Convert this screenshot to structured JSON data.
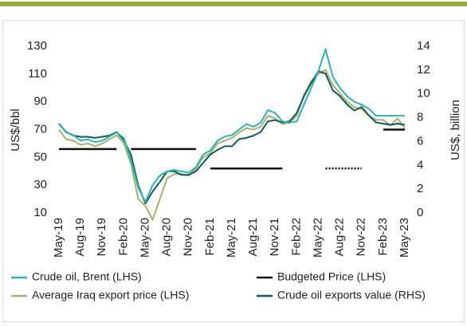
{
  "chart_data": {
    "type": "line",
    "categories": [
      "May-19",
      null,
      null,
      "Aug-19",
      null,
      null,
      "Nov-19",
      null,
      null,
      "Feb-20",
      null,
      null,
      "May-20",
      null,
      null,
      "Aug-20",
      null,
      null,
      "Nov-20",
      null,
      null,
      "Feb-21",
      null,
      null,
      "May-21",
      null,
      null,
      "Aug-21",
      null,
      null,
      "Nov-21",
      null,
      null,
      "Feb-22",
      null,
      null,
      "May-22",
      null,
      null,
      "Aug-22",
      null,
      null,
      "Nov-22",
      null,
      null,
      "Feb-23",
      null,
      null,
      "May-23"
    ],
    "ylabel": "US$/bbl",
    "y2label": "US$, billion",
    "ylim": [
      10,
      130
    ],
    "yticks": [
      10,
      30,
      50,
      70,
      90,
      110,
      130
    ],
    "y2lim": [
      0,
      14
    ],
    "y2ticks": [
      0,
      2,
      4,
      6,
      8,
      10,
      12,
      14
    ],
    "series": [
      {
        "name": "Crude oil, Brent (LHS)",
        "color": "#2bb5b2",
        "values": [
          74,
          68,
          66,
          62,
          63,
          61,
          62,
          65,
          68,
          64,
          48,
          28,
          18,
          30,
          37,
          40,
          41,
          40,
          39,
          43,
          52,
          55,
          62,
          65,
          66,
          70,
          74,
          72,
          75,
          84,
          82,
          76,
          75,
          76,
          88,
          100,
          112,
          128,
          108,
          100,
          94,
          90,
          88,
          85,
          80,
          80,
          80,
          80,
          80
        ]
      },
      {
        "name": "Budgeted Price (LHS)",
        "color": "#111111",
        "values": [
          56,
          56,
          56,
          56,
          56,
          56,
          56,
          56,
          56,
          null,
          56,
          56,
          56,
          56,
          56,
          56,
          56,
          56,
          56,
          56,
          null,
          42,
          42,
          42,
          42,
          42,
          42,
          42,
          42,
          42,
          42,
          42,
          null,
          null,
          null,
          null,
          null,
          42,
          42,
          42,
          42,
          42,
          42,
          null,
          null,
          70,
          70,
          70,
          70
        ],
        "piece_styles": [
          "solid",
          "solid",
          "solid",
          "dotted",
          "solid"
        ]
      },
      {
        "name": "Average Iraq export price (LHS)",
        "color": "#a8b26a",
        "values": [
          70,
          63,
          62,
          59,
          60,
          58,
          60,
          63,
          66,
          60,
          45,
          20,
          15,
          5,
          20,
          35,
          38,
          38,
          37,
          42,
          50,
          53,
          60,
          62,
          64,
          68,
          71,
          70,
          72,
          80,
          78,
          74,
          75,
          80,
          95,
          105,
          110,
          113,
          102,
          96,
          90,
          86,
          85,
          80,
          77,
          77,
          73,
          78,
          71
        ]
      },
      {
        "name": "Crude oil exports value (RHS)",
        "color": "#0e5c5c",
        "axis": "y2",
        "values": [
          7.5,
          6.8,
          6.5,
          6.4,
          6.4,
          6.3,
          6.4,
          6.5,
          6.8,
          6.1,
          4.9,
          2.3,
          0.8,
          1.8,
          2.6,
          3.5,
          3.5,
          3.2,
          3.2,
          3.5,
          4.2,
          4.9,
          5.3,
          5.6,
          5.6,
          6.2,
          6.3,
          6.5,
          6.8,
          7.7,
          7.8,
          7.6,
          7.7,
          8.4,
          9.8,
          10.9,
          11.9,
          11.7,
          10.3,
          9.8,
          9.1,
          8.6,
          8.9,
          8.2,
          7.6,
          7.5,
          7.4,
          7.5,
          7.4
        ]
      }
    ]
  }
}
